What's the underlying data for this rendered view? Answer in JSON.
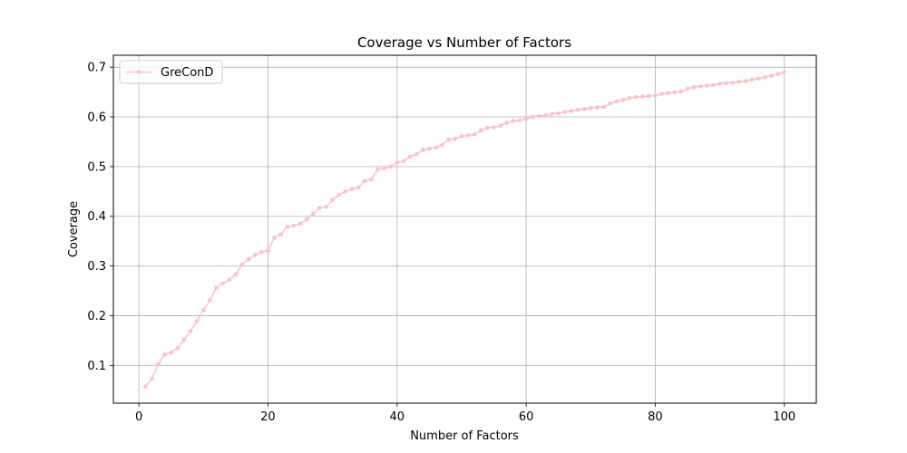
{
  "chart_data": {
    "type": "line",
    "title": "Coverage vs Number of Factors",
    "xlabel": "Number of Factors",
    "ylabel": "Coverage",
    "xlim": [
      -3.95,
      104.95
    ],
    "ylim": [
      0.024,
      0.724
    ],
    "xticks": [
      0,
      20,
      40,
      60,
      80,
      100
    ],
    "yticks": [
      0.1,
      0.2,
      0.3,
      0.4,
      0.5,
      0.6,
      0.7
    ],
    "xtick_labels": [
      "0",
      "20",
      "40",
      "60",
      "80",
      "100"
    ],
    "ytick_labels": [
      "0.1",
      "0.2",
      "0.3",
      "0.4",
      "0.5",
      "0.6",
      "0.7"
    ],
    "grid": true,
    "legend_position": "upper-left",
    "series": [
      {
        "name": "GreConD",
        "color": "#ffc0cb",
        "marker": "circle",
        "x": [
          1,
          2,
          3,
          4,
          5,
          6,
          7,
          8,
          9,
          10,
          11,
          12,
          13,
          14,
          15,
          16,
          17,
          18,
          19,
          20,
          21,
          22,
          23,
          24,
          25,
          26,
          27,
          28,
          29,
          30,
          31,
          32,
          33,
          34,
          35,
          36,
          37,
          38,
          39,
          40,
          41,
          42,
          43,
          44,
          45,
          46,
          47,
          48,
          49,
          50,
          51,
          52,
          53,
          54,
          55,
          56,
          57,
          58,
          59,
          60,
          61,
          62,
          63,
          64,
          65,
          66,
          67,
          68,
          69,
          70,
          71,
          72,
          73,
          74,
          75,
          76,
          77,
          78,
          79,
          80,
          81,
          82,
          83,
          84,
          85,
          86,
          87,
          88,
          89,
          90,
          91,
          92,
          93,
          94,
          95,
          96,
          97,
          98,
          99,
          100
        ],
        "values": [
          0.057,
          0.073,
          0.102,
          0.122,
          0.126,
          0.135,
          0.152,
          0.169,
          0.189,
          0.211,
          0.231,
          0.256,
          0.265,
          0.272,
          0.283,
          0.303,
          0.314,
          0.322,
          0.328,
          0.331,
          0.357,
          0.363,
          0.379,
          0.381,
          0.385,
          0.394,
          0.405,
          0.417,
          0.419,
          0.433,
          0.443,
          0.45,
          0.455,
          0.458,
          0.471,
          0.474,
          0.494,
          0.497,
          0.5,
          0.508,
          0.511,
          0.52,
          0.525,
          0.534,
          0.536,
          0.538,
          0.544,
          0.554,
          0.556,
          0.561,
          0.563,
          0.565,
          0.573,
          0.578,
          0.579,
          0.582,
          0.588,
          0.592,
          0.593,
          0.596,
          0.6,
          0.602,
          0.603,
          0.606,
          0.607,
          0.61,
          0.612,
          0.614,
          0.616,
          0.618,
          0.619,
          0.62,
          0.627,
          0.631,
          0.634,
          0.638,
          0.64,
          0.641,
          0.642,
          0.643,
          0.646,
          0.648,
          0.649,
          0.651,
          0.657,
          0.66,
          0.662,
          0.663,
          0.664,
          0.667,
          0.668,
          0.669,
          0.671,
          0.672,
          0.675,
          0.677,
          0.68,
          0.683,
          0.686,
          0.69
        ]
      }
    ]
  }
}
